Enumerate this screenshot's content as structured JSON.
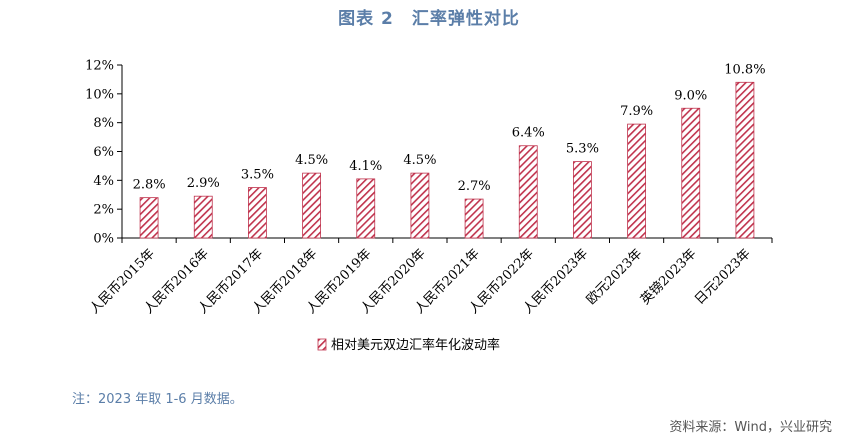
{
  "figure_title": "图表 2　汇率弹性对比",
  "note": "注：2023 年取 1-6 月数据。",
  "source": "资料来源：Wind，兴业研究",
  "colors": {
    "bar": "#c0334d",
    "title": "#5b7ea8"
  },
  "chart_data": {
    "type": "bar",
    "categories": [
      "人民币2015年",
      "人民币2016年",
      "人民币2017年",
      "人民币2018年",
      "人民币2019年",
      "人民币2020年",
      "人民币2021年",
      "人民币2022年",
      "人民币2023年",
      "欧元2023年",
      "英镑2023年",
      "日元2023年"
    ],
    "series": [
      {
        "name": "相对美元双边汇率年化波动率",
        "values": [
          2.8,
          2.9,
          3.5,
          4.5,
          4.1,
          4.5,
          2.7,
          6.4,
          5.3,
          7.9,
          9.0,
          10.8
        ],
        "labels": [
          "2.8%",
          "2.9%",
          "3.5%",
          "4.5%",
          "4.1%",
          "4.5%",
          "2.7%",
          "6.4%",
          "5.3%",
          "7.9%",
          "9.0%",
          "10.8%"
        ]
      }
    ],
    "ylim": [
      0,
      12
    ],
    "yticks": [
      0,
      2,
      4,
      6,
      8,
      10,
      12
    ],
    "ytick_labels": [
      "0%",
      "2%",
      "4%",
      "6%",
      "8%",
      "10%",
      "12%"
    ],
    "legend_position": "bottom",
    "grid": false
  }
}
